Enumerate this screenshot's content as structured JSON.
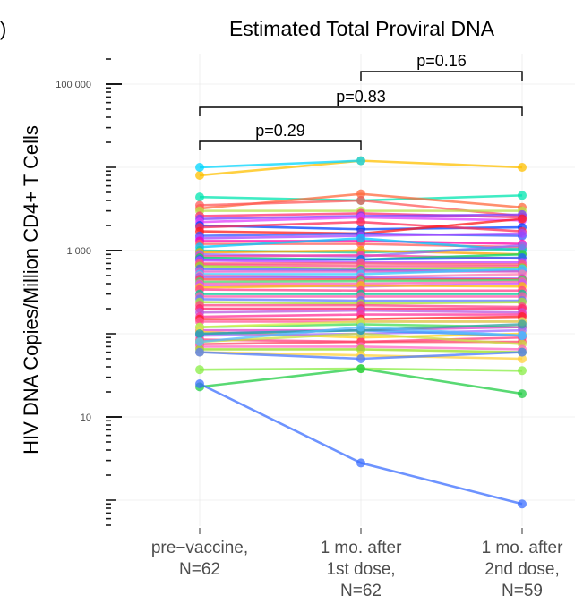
{
  "panel_letter": ")",
  "chart_data": {
    "type": "line",
    "title": "Estimated Total Proviral DNA",
    "ylabel": "HIV DNA Copies/Million CD4+ T Cells",
    "xlabel": "",
    "y_scale": "log10",
    "ylim": [
      0.7,
      200000
    ],
    "grid": true,
    "legend": "none",
    "y_major_ticks": [
      {
        "value": 10,
        "label": "10"
      },
      {
        "value": 1000,
        "label": "1 000"
      },
      {
        "value": 100000,
        "label": "100 000"
      }
    ],
    "categories": [
      {
        "line1": "pre−vaccine,",
        "line2": "N=62",
        "line3": ""
      },
      {
        "line1": "1 mo. after",
        "line2": "1st dose,",
        "line3": "N=62"
      },
      {
        "line1": "1 mo. after",
        "line2": "2nd dose,",
        "line3": "N=59"
      }
    ],
    "comparisons": [
      {
        "from": 0,
        "to": 1,
        "label": "p=0.29",
        "level": 0
      },
      {
        "from": 0,
        "to": 2,
        "label": "p=0.83",
        "level": 1
      },
      {
        "from": 1,
        "to": 2,
        "label": "p=0.16",
        "level": 2
      }
    ],
    "series": [
      {
        "color": "#FFC000",
        "values": [
          8000,
          12000,
          10000
        ]
      },
      {
        "color": "#00D5FF",
        "values": [
          10000,
          12000,
          null
        ]
      },
      {
        "color": "#00E5B0",
        "values": [
          4400,
          4000,
          4600
        ]
      },
      {
        "color": "#FF6A3D",
        "values": [
          3200,
          4800,
          3300
        ]
      },
      {
        "color": "#FF5A5A",
        "values": [
          3500,
          4000,
          2600
        ]
      },
      {
        "color": "#B8E04A",
        "values": [
          3000,
          3000,
          3000
        ]
      },
      {
        "color": "#FF3070",
        "values": [
          2600,
          2800,
          2500
        ]
      },
      {
        "color": "#7C3CFF",
        "values": [
          2400,
          2600,
          2700
        ]
      },
      {
        "color": "#E040FB",
        "values": [
          2200,
          2500,
          2300
        ]
      },
      {
        "color": "#0040FF",
        "values": [
          2000,
          1800,
          1900
        ]
      },
      {
        "color": "#FF2C55",
        "values": [
          1900,
          2200,
          1700
        ]
      },
      {
        "color": "#FF1A1A",
        "values": [
          1700,
          1600,
          2400
        ]
      },
      {
        "color": "#3355FF",
        "values": [
          1500,
          1600,
          1500
        ]
      },
      {
        "color": "#AA44FF",
        "values": [
          1400,
          1500,
          1600
        ]
      },
      {
        "color": "#FF00AA",
        "values": [
          1300,
          1300,
          1200
        ]
      },
      {
        "color": "#FF5E5E",
        "values": [
          1200,
          1200,
          1100
        ]
      },
      {
        "color": "#00C8FF",
        "values": [
          1100,
          1400,
          1000
        ]
      },
      {
        "color": "#18C8A0",
        "values": [
          1000,
          950,
          1050
        ]
      },
      {
        "color": "#FFA000",
        "values": [
          950,
          1000,
          900
        ]
      },
      {
        "color": "#8A6BFF",
        "values": [
          900,
          850,
          1150
        ]
      },
      {
        "color": "#FF3CA0",
        "values": [
          850,
          880,
          800
        ]
      },
      {
        "color": "#00D964",
        "values": [
          820,
          780,
          900
        ]
      },
      {
        "color": "#2060FF",
        "values": [
          780,
          780,
          820
        ]
      },
      {
        "color": "#C040FF",
        "values": [
          760,
          720,
          720
        ]
      },
      {
        "color": "#FF6070",
        "values": [
          700,
          700,
          680
        ]
      },
      {
        "color": "#FF4F8A",
        "values": [
          680,
          650,
          650
        ]
      },
      {
        "color": "#90E020",
        "values": [
          650,
          600,
          620
        ]
      },
      {
        "color": "#5060FF",
        "values": [
          600,
          580,
          570
        ]
      },
      {
        "color": "#E05CC8",
        "values": [
          560,
          560,
          560
        ]
      },
      {
        "color": "#30D0FF",
        "values": [
          520,
          520,
          600
        ]
      },
      {
        "color": "#FF7AB0",
        "values": [
          500,
          480,
          520
        ]
      },
      {
        "color": "#9B59F5",
        "values": [
          480,
          470,
          460
        ]
      },
      {
        "color": "#FF4545",
        "values": [
          450,
          450,
          450
        ]
      },
      {
        "color": "#40E070",
        "values": [
          420,
          430,
          440
        ]
      },
      {
        "color": "#FF5CB5",
        "values": [
          400,
          400,
          420
        ]
      },
      {
        "color": "#CC55FF",
        "values": [
          380,
          370,
          400
        ]
      },
      {
        "color": "#FFC000",
        "values": [
          360,
          380,
          370
        ]
      },
      {
        "color": "#FF3C8C",
        "values": [
          340,
          330,
          330
        ]
      },
      {
        "color": "#00C896",
        "values": [
          300,
          300,
          300
        ]
      },
      {
        "color": "#FF55AA",
        "values": [
          280,
          280,
          280
        ]
      },
      {
        "color": "#5C7CFF",
        "values": [
          260,
          250,
          250
        ]
      },
      {
        "color": "#A8E030",
        "values": [
          240,
          230,
          240
        ]
      },
      {
        "color": "#FF4488",
        "values": [
          220,
          220,
          210
        ]
      },
      {
        "color": "#FF2266",
        "values": [
          200,
          200,
          200
        ]
      },
      {
        "color": "#BB55DD",
        "values": [
          180,
          190,
          180
        ]
      },
      {
        "color": "#FF3399",
        "values": [
          160,
          170,
          170
        ]
      },
      {
        "color": "#FF1F1F",
        "values": [
          150,
          150,
          160
        ]
      },
      {
        "color": "#FF5599",
        "values": [
          140,
          140,
          140
        ]
      },
      {
        "color": "#44DD55",
        "values": [
          120,
          130,
          120
        ]
      },
      {
        "color": "#DD44CC",
        "values": [
          110,
          110,
          120
        ]
      },
      {
        "color": "#FFD21A",
        "values": [
          105,
          90,
          100
        ]
      },
      {
        "color": "#9F6FFF",
        "values": [
          95,
          100,
          110
        ]
      },
      {
        "color": "#FF3D7F",
        "values": [
          85,
          80,
          90
        ]
      },
      {
        "color": "#FF4466",
        "values": [
          75,
          80,
          80
        ]
      },
      {
        "color": "#C8E040",
        "values": [
          80,
          100,
          75
        ]
      },
      {
        "color": "#FF66C4",
        "values": [
          70,
          70,
          65
        ]
      },
      {
        "color": "#3399FF",
        "values": [
          100,
          110,
          95
        ]
      },
      {
        "color": "#D9F050",
        "values": [
          120,
          140,
          140
        ]
      },
      {
        "color": "#99DD22",
        "values": [
          65,
          65,
          60
        ]
      },
      {
        "color": "#FFD23C",
        "values": [
          60,
          55,
          50
        ]
      },
      {
        "color": "#30A0A0",
        "values": [
          100,
          110,
          130
        ]
      },
      {
        "color": "#55BBFF",
        "values": [
          80,
          120,
          95
        ]
      },
      {
        "color": "#4A78FF",
        "values": [
          60,
          50,
          60
        ]
      },
      {
        "color": "#88EE44",
        "values": [
          37,
          38,
          36
        ]
      },
      {
        "color": "#22CC44",
        "values": [
          23,
          38,
          19
        ]
      },
      {
        "color": "#3C6FFF",
        "values": [
          25,
          2.8,
          0.9
        ]
      }
    ]
  }
}
